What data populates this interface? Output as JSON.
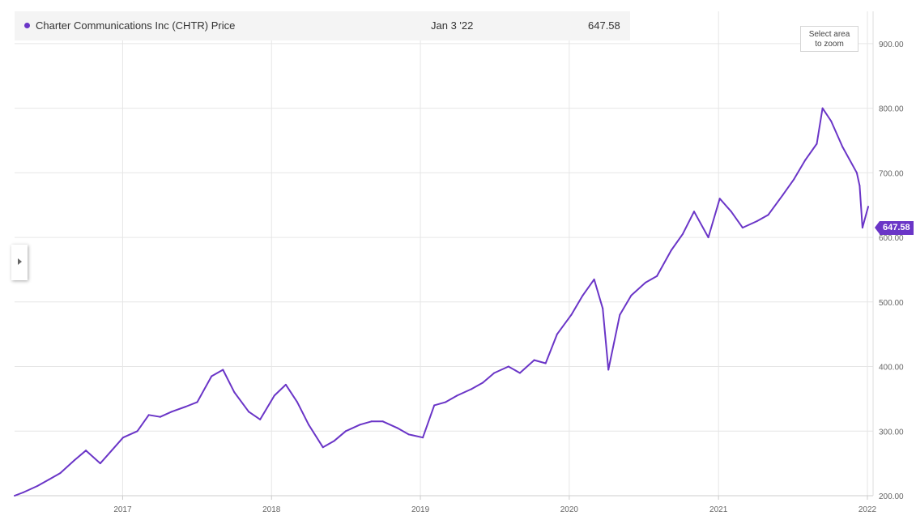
{
  "header": {
    "series_label": "Charter Communications Inc (CHTR) Price",
    "hover_date": "Jan 3 '22",
    "hover_value": "647.58"
  },
  "zoom_hint": "Select area\nto zoom",
  "last_price_label": "647.58",
  "colors": {
    "line": "#6a35c7",
    "grid": "#e6e6e6",
    "axis_text": "#666666"
  },
  "icons": {
    "sidebar_toggle": "chevron-right-icon"
  },
  "chart_data": {
    "type": "line",
    "title": "",
    "xlabel": "",
    "ylabel": "",
    "ylim": [
      200,
      950
    ],
    "xlim": [
      "2016-04-11",
      "2022-01-03"
    ],
    "x_ticks": [
      "2017",
      "2018",
      "2019",
      "2020",
      "2021",
      "2022"
    ],
    "y_ticks": [
      "200.00",
      "300.00",
      "400.00",
      "500.00",
      "600.00",
      "700.00",
      "800.00",
      "900.00"
    ],
    "y_tick_values": [
      200,
      300,
      400,
      500,
      600,
      700,
      800,
      900
    ],
    "grid": true,
    "series": [
      {
        "name": "Charter Communications Inc (CHTR) Price",
        "x": [
          "2016-04-11",
          "2016-05-02",
          "2016-06-06",
          "2016-07-04",
          "2016-08-01",
          "2016-09-05",
          "2016-10-03",
          "2016-11-07",
          "2016-12-05",
          "2017-01-02",
          "2017-02-06",
          "2017-03-06",
          "2017-04-03",
          "2017-05-01",
          "2017-06-05",
          "2017-07-03",
          "2017-08-07",
          "2017-09-04",
          "2017-10-02",
          "2017-11-06",
          "2017-12-04",
          "2018-01-08",
          "2018-02-05",
          "2018-03-05",
          "2018-04-02",
          "2018-05-07",
          "2018-06-04",
          "2018-07-02",
          "2018-08-06",
          "2018-09-03",
          "2018-10-01",
          "2018-11-05",
          "2018-12-03",
          "2019-01-07",
          "2019-02-04",
          "2019-03-04",
          "2019-04-01",
          "2019-05-06",
          "2019-06-03",
          "2019-07-01",
          "2019-08-05",
          "2019-09-02",
          "2019-10-07",
          "2019-11-04",
          "2019-12-02",
          "2020-01-06",
          "2020-02-03",
          "2020-03-02",
          "2020-03-23",
          "2020-04-06",
          "2020-05-04",
          "2020-06-01",
          "2020-07-06",
          "2020-08-03",
          "2020-09-07",
          "2020-10-05",
          "2020-11-02",
          "2020-12-07",
          "2021-01-04",
          "2021-02-01",
          "2021-03-01",
          "2021-04-05",
          "2021-05-03",
          "2021-06-07",
          "2021-07-05",
          "2021-08-02",
          "2021-08-30",
          "2021-09-13",
          "2021-10-04",
          "2021-11-01",
          "2021-12-06",
          "2021-12-13",
          "2021-12-20",
          "2022-01-03"
        ],
        "values": [
          200,
          205,
          215,
          225,
          235,
          255,
          270,
          250,
          270,
          290,
          300,
          325,
          322,
          330,
          338,
          345,
          385,
          395,
          360,
          330,
          318,
          355,
          372,
          345,
          310,
          275,
          285,
          300,
          310,
          315,
          315,
          305,
          295,
          290,
          340,
          345,
          355,
          365,
          375,
          390,
          400,
          390,
          410,
          405,
          450,
          480,
          510,
          535,
          490,
          395,
          480,
          510,
          530,
          540,
          580,
          605,
          640,
          600,
          660,
          640,
          615,
          625,
          635,
          665,
          690,
          720,
          745,
          800,
          780,
          740,
          700,
          680,
          615,
          647.58
        ]
      }
    ]
  }
}
